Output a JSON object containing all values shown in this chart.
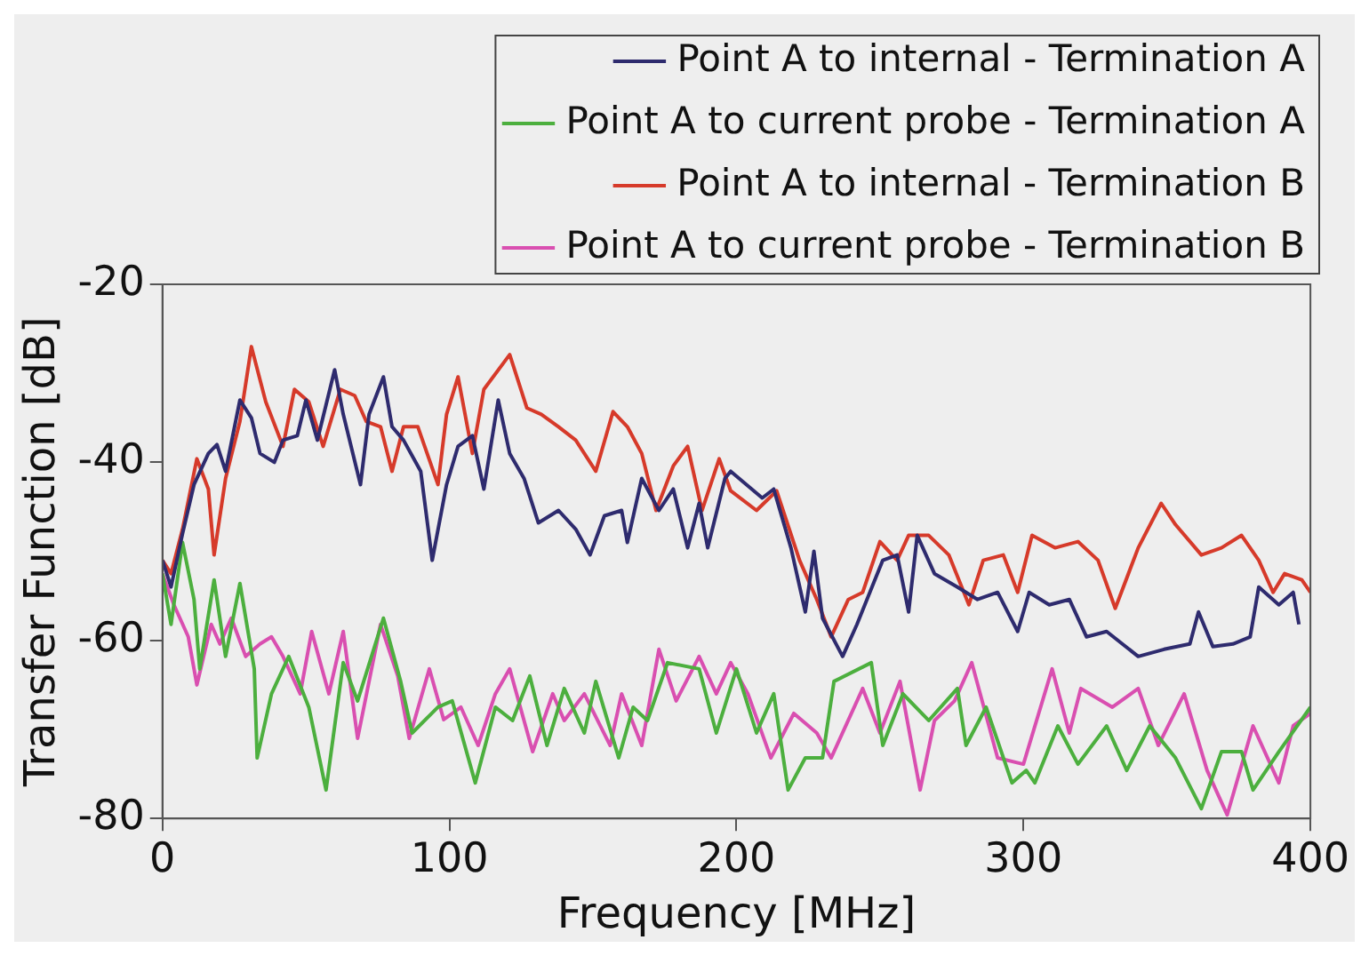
{
  "chart_data": {
    "type": "line",
    "xlabel": "Frequency [MHz]",
    "ylabel": "Transfer Function [dB]",
    "xlim": [
      0,
      400
    ],
    "xticks": [
      0,
      100,
      200,
      300,
      400
    ],
    "ylim": [
      -80,
      -20
    ],
    "yticks": [
      -80,
      -60,
      -40,
      -20
    ],
    "grid": false,
    "legend": "top right",
    "marker": "none",
    "line_style": "solid",
    "series": [
      {
        "name": "Point A to internal - Termination A",
        "color": "#2e2b6e",
        "x": [
          0,
          3,
          7,
          11,
          16,
          19,
          22,
          27,
          31,
          34,
          39,
          42,
          47,
          50,
          54,
          60,
          63,
          69,
          72,
          77,
          80,
          84,
          90,
          94,
          99,
          103,
          108,
          112,
          117,
          121,
          126,
          131,
          138,
          144,
          149,
          154,
          160,
          162,
          167,
          173,
          178,
          183,
          187,
          190,
          196,
          198,
          209,
          213,
          219,
          224,
          227,
          230,
          237,
          242,
          251,
          256,
          260,
          263,
          269,
          277,
          284,
          291,
          298,
          302,
          309,
          316,
          322,
          329,
          340,
          349,
          358,
          361,
          366,
          373,
          379,
          382,
          389,
          394,
          396
        ],
        "values": [
          -51,
          -54,
          -48,
          -42.5,
          -39,
          -38,
          -41,
          -33,
          -35,
          -39,
          -40,
          -37.5,
          -37,
          -33,
          -37.5,
          -29.6,
          -34.6,
          -42.5,
          -34.6,
          -30.4,
          -36,
          -37.5,
          -41,
          -51,
          -42.5,
          -38.2,
          -37,
          -43,
          -33,
          -39,
          -41.8,
          -46.8,
          -45.4,
          -47.5,
          -50.4,
          -46,
          -45.4,
          -49,
          -41.8,
          -45.4,
          -43,
          -49.6,
          -44.6,
          -49.6,
          -41.8,
          -41,
          -44,
          -43,
          -49.6,
          -56.8,
          -50,
          -57.5,
          -61.8,
          -58.2,
          -51,
          -50.4,
          -56.8,
          -48.2,
          -52.5,
          -54,
          -55.4,
          -54.6,
          -59,
          -54.6,
          -56,
          -55.4,
          -59.6,
          -59,
          -61.8,
          -61,
          -60.4,
          -56.8,
          -60.7,
          -60.4,
          -59.6,
          -54,
          -56,
          -54.6,
          -58.2
        ]
      },
      {
        "name": "Point A to current probe - Termination A",
        "color": "#4caf3e",
        "x": [
          0,
          3,
          7,
          11,
          13,
          18,
          22,
          27,
          32,
          33,
          38,
          44,
          51,
          57,
          63,
          68,
          77,
          83,
          87,
          96,
          101,
          109,
          116,
          122,
          128,
          134,
          140,
          147,
          151,
          159,
          164,
          169,
          176,
          187,
          193,
          200,
          207,
          213,
          218,
          224,
          230,
          234,
          247,
          251,
          258,
          267,
          277,
          280,
          287,
          296,
          301,
          304,
          312,
          319,
          329,
          336,
          344,
          353,
          362,
          369,
          376,
          380,
          389,
          400
        ],
        "values": [
          -52.5,
          -58.2,
          -49,
          -55.4,
          -63.2,
          -53.2,
          -61.8,
          -53.6,
          -63.2,
          -73.2,
          -66,
          -61.8,
          -67.5,
          -76.8,
          -62.5,
          -66.8,
          -57.5,
          -64.6,
          -70.4,
          -67.5,
          -66.8,
          -76,
          -67.5,
          -69,
          -64,
          -71.8,
          -65.4,
          -70.4,
          -64.6,
          -73.2,
          -67.5,
          -69,
          -62.5,
          -63.2,
          -70.4,
          -63.2,
          -70.4,
          -66,
          -76.8,
          -73.2,
          -73.2,
          -64.6,
          -62.5,
          -71.8,
          -66,
          -69,
          -65.4,
          -71.8,
          -67.5,
          -76,
          -74.6,
          -76,
          -69.6,
          -73.9,
          -69.6,
          -74.6,
          -69.6,
          -73.2,
          -78.9,
          -72.5,
          -72.5,
          -76.8,
          -72.5,
          -67.5
        ]
      },
      {
        "name": "Point A to internal - Termination B",
        "color": "#d63a2a",
        "x": [
          0,
          3,
          7,
          12,
          16,
          18,
          22,
          27,
          31,
          36,
          42,
          46,
          51,
          56,
          62,
          67,
          71,
          76,
          80,
          84,
          89,
          96,
          99,
          103,
          108,
          112,
          121,
          127,
          132,
          138,
          144,
          151,
          157,
          162,
          167,
          172,
          178,
          183,
          188,
          194,
          198,
          207,
          214,
          222,
          228,
          233,
          239,
          244,
          250,
          256,
          260,
          267,
          274,
          281,
          286,
          293,
          298,
          303,
          311,
          319,
          326,
          332,
          340,
          348,
          353,
          362,
          369,
          376,
          382,
          387,
          391,
          397,
          400
        ],
        "values": [
          -51,
          -52.5,
          -47.5,
          -39.6,
          -43,
          -50.4,
          -41.8,
          -35.4,
          -27,
          -33.2,
          -38.2,
          -31.8,
          -33.2,
          -38.2,
          -31.8,
          -32.5,
          -35.4,
          -36,
          -41,
          -36,
          -36,
          -42.5,
          -34.6,
          -30.4,
          -39,
          -31.8,
          -27.9,
          -33.9,
          -34.6,
          -36,
          -37.5,
          -41,
          -34.3,
          -36,
          -39,
          -45.4,
          -40.4,
          -38.2,
          -45.4,
          -39.6,
          -43.2,
          -45.4,
          -43.2,
          -51,
          -55.4,
          -59.6,
          -55.4,
          -54.6,
          -48.9,
          -51,
          -48.2,
          -48.2,
          -50.4,
          -56,
          -51,
          -50.4,
          -54.6,
          -48.2,
          -49.6,
          -48.9,
          -51,
          -56.4,
          -49.6,
          -44.6,
          -47,
          -50.4,
          -49.6,
          -48.2,
          -51,
          -54.6,
          -52.5,
          -53.2,
          -54.6
        ]
      },
      {
        "name": "Point A to current probe - Termination B",
        "color": "#d94fb0",
        "x": [
          0,
          4,
          9,
          12,
          17,
          20,
          24,
          29,
          34,
          38,
          42,
          48,
          52,
          58,
          63,
          68,
          76,
          82,
          86,
          93,
          98,
          104,
          110,
          116,
          121,
          129,
          136,
          140,
          147,
          156,
          160,
          167,
          173,
          179,
          187,
          193,
          198,
          204,
          212,
          220,
          228,
          233,
          244,
          250,
          257,
          264,
          269,
          276,
          282,
          291,
          300,
          310,
          316,
          320,
          331,
          340,
          347,
          356,
          364,
          371,
          380,
          389,
          394,
          400
        ],
        "values": [
          -52.5,
          -56,
          -59.6,
          -65,
          -58.2,
          -60.4,
          -57.5,
          -61.8,
          -60.4,
          -59.6,
          -61.8,
          -66,
          -59,
          -66,
          -59,
          -71,
          -58.2,
          -64,
          -71,
          -63.2,
          -68.9,
          -67.5,
          -71.8,
          -66,
          -63.2,
          -72.5,
          -66,
          -69,
          -66,
          -71.8,
          -66,
          -71.8,
          -61,
          -66.8,
          -61.8,
          -66,
          -62.5,
          -66,
          -73.2,
          -68.2,
          -70.4,
          -73.2,
          -65.4,
          -70.4,
          -64.6,
          -76.8,
          -69,
          -66.8,
          -62.5,
          -73.2,
          -73.9,
          -63.2,
          -70.4,
          -65.4,
          -67.5,
          -65.4,
          -71.8,
          -66,
          -74.6,
          -79.6,
          -69.6,
          -76,
          -69.6,
          -68.2
        ]
      }
    ]
  }
}
